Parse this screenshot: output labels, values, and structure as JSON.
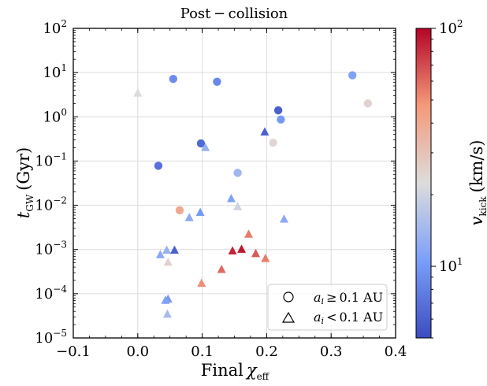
{
  "chart_data": {
    "type": "scatter",
    "title": "Post − collision",
    "xlabel": {
      "main": "Final",
      "greek": "χ",
      "sub": "eff"
    },
    "ylabel": {
      "main": "t",
      "sub": "GW",
      "unit": "(Gyr)"
    },
    "colorbar_label": {
      "main": "v",
      "sub": "kick",
      "unit": "(km/s)"
    },
    "xlim": [
      -0.1,
      0.4
    ],
    "ylim_log10": [
      -5,
      2
    ],
    "y_scale": "log",
    "grid": true,
    "x_ticks": [
      "−0.1",
      "0.0",
      "0.1",
      "0.2",
      "0.3",
      "0.4"
    ],
    "y_tick_exponents": [
      "2",
      "1",
      "0",
      "−1",
      "−2",
      "−3",
      "−4",
      "−5"
    ],
    "colorbar": {
      "scale": "log",
      "range": [
        5,
        100
      ],
      "colormap": "coolwarm",
      "tick_exponents": [
        "2",
        "1"
      ]
    },
    "legend": {
      "placement": "lower right",
      "entries": [
        {
          "marker": "circle",
          "label": "a_i ≥ 0.1 AU",
          "var": "a",
          "sub": "i",
          "rel": "≥",
          "val": "0.1 AU"
        },
        {
          "marker": "triangle",
          "label": "a_i < 0.1 AU",
          "var": "a",
          "sub": "i",
          "rel": "<",
          "val": "0.1 AU"
        }
      ]
    },
    "series": [
      {
        "marker": "circle",
        "points": [
          {
            "x": 0.055,
            "y": 7.2,
            "v": 9
          },
          {
            "x": 0.123,
            "y": 6.2,
            "v": 8.5
          },
          {
            "x": 0.333,
            "y": 8.7,
            "v": 11
          },
          {
            "x": 0.357,
            "y": 2.0,
            "v": 25
          },
          {
            "x": 0.218,
            "y": 1.4,
            "v": 6
          },
          {
            "x": 0.222,
            "y": 0.87,
            "v": 10
          },
          {
            "x": 0.098,
            "y": 0.25,
            "v": 6.5
          },
          {
            "x": 0.21,
            "y": 0.26,
            "v": 24
          },
          {
            "x": 0.032,
            "y": 0.078,
            "v": 7
          },
          {
            "x": 0.155,
            "y": 0.054,
            "v": 14
          },
          {
            "x": 0.065,
            "y": 0.0077,
            "v": 40
          }
        ]
      },
      {
        "marker": "triangle",
        "points": [
          {
            "x": 0.0,
            "y": 3.4,
            "v": 22
          },
          {
            "x": 0.197,
            "y": 0.45,
            "v": 6
          },
          {
            "x": 0.105,
            "y": 0.2,
            "v": 13
          },
          {
            "x": 0.145,
            "y": 0.014,
            "v": 11
          },
          {
            "x": 0.155,
            "y": 0.0092,
            "v": 20
          },
          {
            "x": 0.097,
            "y": 0.0068,
            "v": 10
          },
          {
            "x": 0.08,
            "y": 0.0052,
            "v": 12
          },
          {
            "x": 0.227,
            "y": 0.0048,
            "v": 12
          },
          {
            "x": 0.172,
            "y": 0.0022,
            "v": 55
          },
          {
            "x": 0.045,
            "y": 0.00095,
            "v": 13
          },
          {
            "x": 0.057,
            "y": 0.00095,
            "v": 6
          },
          {
            "x": 0.035,
            "y": 0.00075,
            "v": 12
          },
          {
            "x": 0.147,
            "y": 0.00092,
            "v": 85
          },
          {
            "x": 0.161,
            "y": 0.001,
            "v": 90
          },
          {
            "x": 0.183,
            "y": 0.0008,
            "v": 65
          },
          {
            "x": 0.198,
            "y": 0.00062,
            "v": 55
          },
          {
            "x": 0.047,
            "y": 0.00051,
            "v": 25
          },
          {
            "x": 0.13,
            "y": 0.00035,
            "v": 60
          },
          {
            "x": 0.099,
            "y": 0.00017,
            "v": 50
          },
          {
            "x": 0.047,
            "y": 7.5e-05,
            "v": 10
          },
          {
            "x": 0.043,
            "y": 7e-05,
            "v": 11
          },
          {
            "x": 0.046,
            "y": 3.4e-05,
            "v": 15
          }
        ]
      }
    ]
  }
}
